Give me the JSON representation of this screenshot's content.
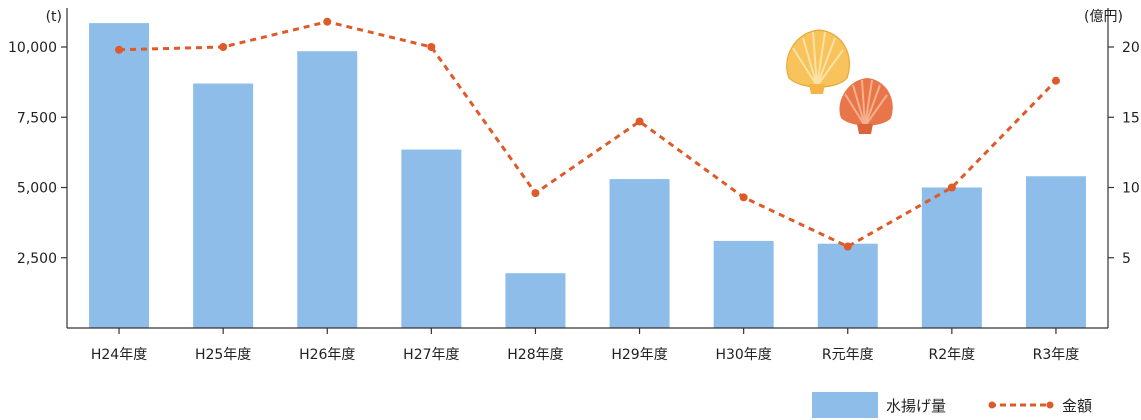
{
  "chart_data": {
    "type": "bar",
    "categories": [
      "H24年度",
      "H25年度",
      "H26年度",
      "H27年度",
      "H28年度",
      "H29年度",
      "H30年度",
      "R元年度",
      "R2年度",
      "R3年度"
    ],
    "series": [
      {
        "name": "水揚げ量",
        "type": "bar",
        "axis": "left",
        "color": "#8dbde8",
        "values": [
          10850,
          8700,
          9850,
          6350,
          1950,
          5300,
          3100,
          3000,
          5000,
          5400
        ]
      },
      {
        "name": "金額",
        "type": "line",
        "axis": "right",
        "color": "#de5a28",
        "style": "dashed",
        "values": [
          19.8,
          20.0,
          21.8,
          20.0,
          9.6,
          14.7,
          9.3,
          5.8,
          10.0,
          17.6
        ]
      }
    ],
    "y_left": {
      "unit": "(t)",
      "ylim": [
        0,
        10000
      ],
      "ticks": [
        "2,500",
        "5,000",
        "7,500",
        "10,000"
      ],
      "tick_values": [
        2500,
        5000,
        7500,
        10000
      ]
    },
    "y_right": {
      "unit": "(億円)",
      "ylim": [
        0,
        20
      ],
      "ticks": [
        "5",
        "10",
        "15",
        "20"
      ],
      "tick_values": [
        5,
        10,
        15,
        20
      ]
    },
    "grid": false,
    "legend": "bottom-right"
  },
  "legend": {
    "bar_label": "水揚げ量",
    "line_label": "金額"
  },
  "decor": {
    "icon": "scallop-shells-icon",
    "shell_colors": [
      "#f7c35a",
      "#e8764a"
    ]
  }
}
